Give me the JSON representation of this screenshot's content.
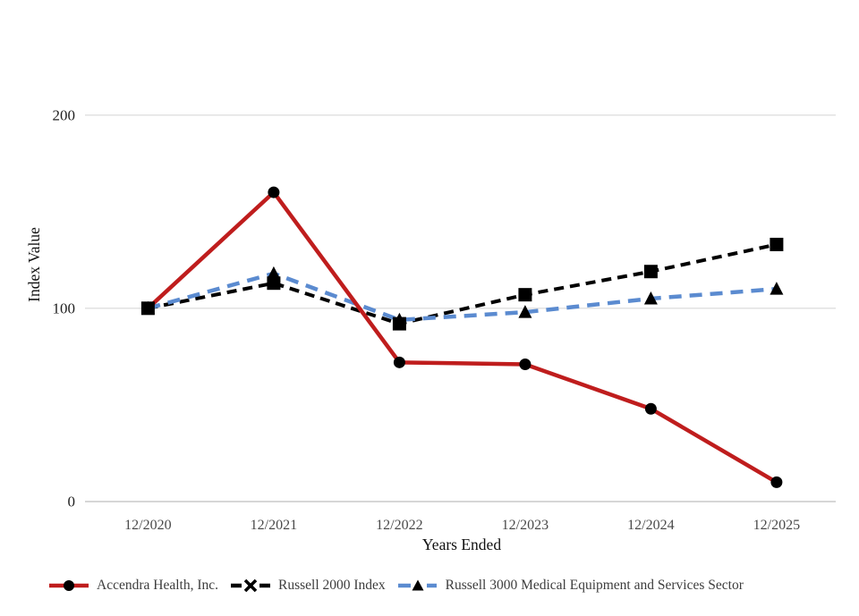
{
  "chart_data": {
    "type": "line",
    "title": "",
    "xlabel": "Years Ended",
    "ylabel": "Index Value",
    "categories": [
      "12/2020",
      "12/2021",
      "12/2022",
      "12/2023",
      "12/2024",
      "12/2025"
    ],
    "yticks": [
      0,
      100,
      200
    ],
    "ylim": [
      0,
      215
    ],
    "grid": "horizontal-only",
    "gridline_color": "#d9d9d9",
    "legend_position": "bottom",
    "series": [
      {
        "name": "Accendra Health, Inc.",
        "values": [
          100,
          160,
          72,
          71,
          48,
          10
        ],
        "color": "#bf1d1d",
        "line_style": "solid",
        "marker": "circle",
        "marker_color": "#000000",
        "legend_marker": "circle-on-line"
      },
      {
        "name": "Russell 2000 Index",
        "values": [
          100,
          113,
          92,
          107,
          119,
          133
        ],
        "color": "#000000",
        "line_style": "dashed",
        "marker": "square",
        "marker_color": "#000000",
        "legend_marker": "x-on-dashes"
      },
      {
        "name": "Russell 3000 Medical Equipment and Services Sector",
        "values": [
          100,
          118,
          94,
          98,
          105,
          110
        ],
        "color": "#5b8bd0",
        "line_style": "dashed",
        "marker": "triangle",
        "marker_color": "#000000",
        "legend_marker": "triangle-on-dashes"
      }
    ]
  }
}
